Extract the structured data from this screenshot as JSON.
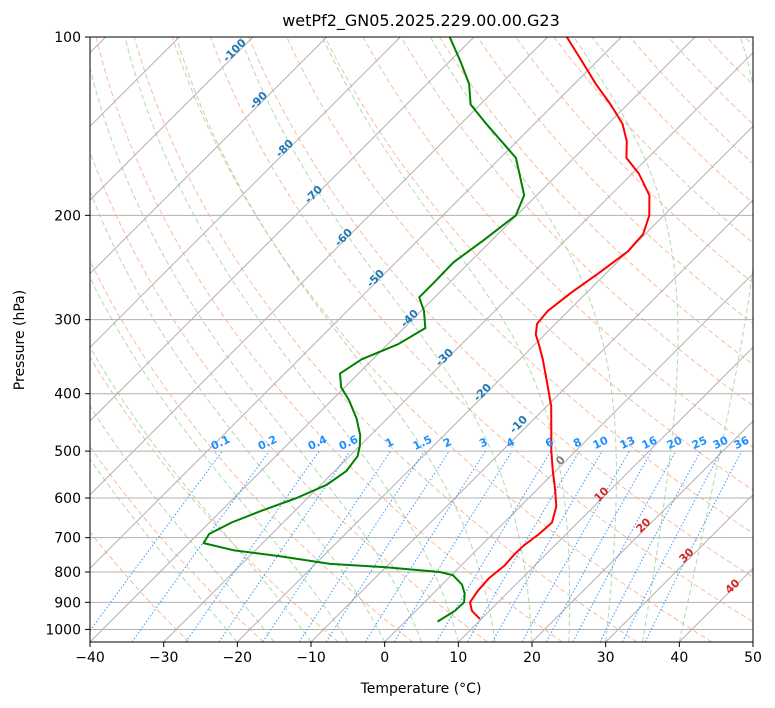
{
  "chart_data": {
    "type": "line",
    "title": "wetPf2_GN05.2025.229.00.00.G23",
    "xlabel": "Temperature (°C)",
    "ylabel": "Pressure (hPa)",
    "xlim": [
      -40,
      50
    ],
    "ylim": [
      1050,
      100
    ],
    "y_scale": "log",
    "grid": true,
    "x_ticks": [
      -40,
      -30,
      -20,
      -10,
      0,
      10,
      20,
      30,
      40,
      50
    ],
    "x_tick_labels": [
      "−40",
      "−30",
      "−20",
      "−10",
      "0",
      "10",
      "20",
      "30",
      "40",
      "50"
    ],
    "y_ticks": [
      100,
      200,
      300,
      400,
      500,
      600,
      700,
      800,
      900,
      1000
    ],
    "y_tick_labels": [
      "100",
      "200",
      "300",
      "400",
      "500",
      "600",
      "700",
      "800",
      "900",
      "1000"
    ],
    "colors": {
      "temperature": "#ff0000",
      "dewpoint": "#008000",
      "dry_adiabat": "#f4a582",
      "moist_adiabat": "#98cc98",
      "mixing_ratio": "#1f77b4",
      "isotherm": "#b0b0b0"
    },
    "series": [
      {
        "values": [
          {
            "p": 960,
            "t": 9.8
          },
          {
            "p": 930,
            "t": 7.6
          },
          {
            "p": 900,
            "t": 6.2
          },
          {
            "p": 860,
            "t": 5.7
          },
          {
            "p": 820,
            "t": 5.5
          },
          {
            "p": 780,
            "t": 5.9
          },
          {
            "p": 745,
            "t": 5.7
          },
          {
            "p": 720,
            "t": 5.8
          },
          {
            "p": 690,
            "t": 6.3
          },
          {
            "p": 660,
            "t": 6.5
          },
          {
            "p": 620,
            "t": 4.9
          },
          {
            "p": 580,
            "t": 2.4
          },
          {
            "p": 540,
            "t": -0.4
          },
          {
            "p": 500,
            "t": -3.3
          },
          {
            "p": 460,
            "t": -6.2
          },
          {
            "p": 420,
            "t": -9.4
          },
          {
            "p": 380,
            "t": -13.5
          },
          {
            "p": 350,
            "t": -16.9
          },
          {
            "p": 330,
            "t": -19.5
          },
          {
            "p": 318,
            "t": -21.2
          },
          {
            "p": 305,
            "t": -22.5
          },
          {
            "p": 290,
            "t": -22.8
          },
          {
            "p": 270,
            "t": -22.1
          },
          {
            "p": 250,
            "t": -21.0
          },
          {
            "p": 230,
            "t": -20.0
          },
          {
            "p": 215,
            "t": -20.3
          },
          {
            "p": 200,
            "t": -22.0
          },
          {
            "p": 185,
            "t": -24.7
          },
          {
            "p": 170,
            "t": -29.1
          },
          {
            "p": 160,
            "t": -32.9
          },
          {
            "p": 150,
            "t": -35.1
          },
          {
            "p": 140,
            "t": -38.1
          },
          {
            "p": 130,
            "t": -42.3
          },
          {
            "p": 120,
            "t": -47.1
          },
          {
            "p": 110,
            "t": -52.0
          },
          {
            "p": 100,
            "t": -57.4
          }
        ]
      },
      {
        "values": [
          {
            "p": 970,
            "t": 4.4
          },
          {
            "p": 930,
            "t": 5.3
          },
          {
            "p": 900,
            "t": 5.4
          },
          {
            "p": 870,
            "t": 4.3
          },
          {
            "p": 840,
            "t": 2.7
          },
          {
            "p": 810,
            "t": 0.2
          },
          {
            "p": 800,
            "t": -2.0
          },
          {
            "p": 785,
            "t": -10.0
          },
          {
            "p": 775,
            "t": -18.0
          },
          {
            "p": 752,
            "t": -26.0
          },
          {
            "p": 735,
            "t": -33.0
          },
          {
            "p": 715,
            "t": -38.0
          },
          {
            "p": 690,
            "t": -38.5
          },
          {
            "p": 660,
            "t": -37.0
          },
          {
            "p": 630,
            "t": -34.5
          },
          {
            "p": 600,
            "t": -31.5
          },
          {
            "p": 570,
            "t": -29.2
          },
          {
            "p": 540,
            "t": -28.4
          },
          {
            "p": 510,
            "t": -28.9
          },
          {
            "p": 490,
            "t": -30.0
          },
          {
            "p": 470,
            "t": -31.4
          },
          {
            "p": 440,
            "t": -34.2
          },
          {
            "p": 410,
            "t": -37.7
          },
          {
            "p": 390,
            "t": -40.5
          },
          {
            "p": 370,
            "t": -42.5
          },
          {
            "p": 350,
            "t": -41.5
          },
          {
            "p": 330,
            "t": -38.6
          },
          {
            "p": 310,
            "t": -37.1
          },
          {
            "p": 290,
            "t": -39.6
          },
          {
            "p": 275,
            "t": -42.1
          },
          {
            "p": 260,
            "t": -42.1
          },
          {
            "p": 240,
            "t": -42.2
          },
          {
            "p": 220,
            "t": -41.1
          },
          {
            "p": 200,
            "t": -40.1
          },
          {
            "p": 185,
            "t": -41.7
          },
          {
            "p": 170,
            "t": -45.3
          },
          {
            "p": 160,
            "t": -47.9
          },
          {
            "p": 150,
            "t": -52.1
          },
          {
            "p": 140,
            "t": -56.6
          },
          {
            "p": 130,
            "t": -61.3
          },
          {
            "p": 120,
            "t": -64.3
          },
          {
            "p": 110,
            "t": -68.5
          },
          {
            "p": 100,
            "t": -73.3
          }
        ]
      }
    ],
    "isotherm_labels": [
      "-100",
      "-90",
      "-80",
      "-70",
      "-60",
      "-50",
      "-40",
      "-30",
      "-20",
      "-10"
    ],
    "isotherm_label_values": [
      -100,
      -90,
      -80,
      -70,
      -60,
      -50,
      -40,
      -30,
      -20,
      -10
    ],
    "mixing_ratio_labels": [
      "0.1",
      "0.2",
      "0.4",
      "0.6",
      "1",
      "1.5",
      "2",
      "3",
      "4",
      "6",
      "8",
      "10",
      "13",
      "16",
      "20",
      "25",
      "30",
      "36"
    ],
    "mixing_ratio_values": [
      0.1,
      0.2,
      0.4,
      0.6,
      1,
      1.5,
      2,
      3,
      4,
      6,
      8,
      10,
      13,
      16,
      20,
      25,
      30,
      36
    ],
    "warm_isotherm_labels": [
      "0",
      "10",
      "20",
      "30",
      "40"
    ],
    "warm_isotherm_values": [
      0,
      10,
      20,
      30,
      40
    ]
  }
}
